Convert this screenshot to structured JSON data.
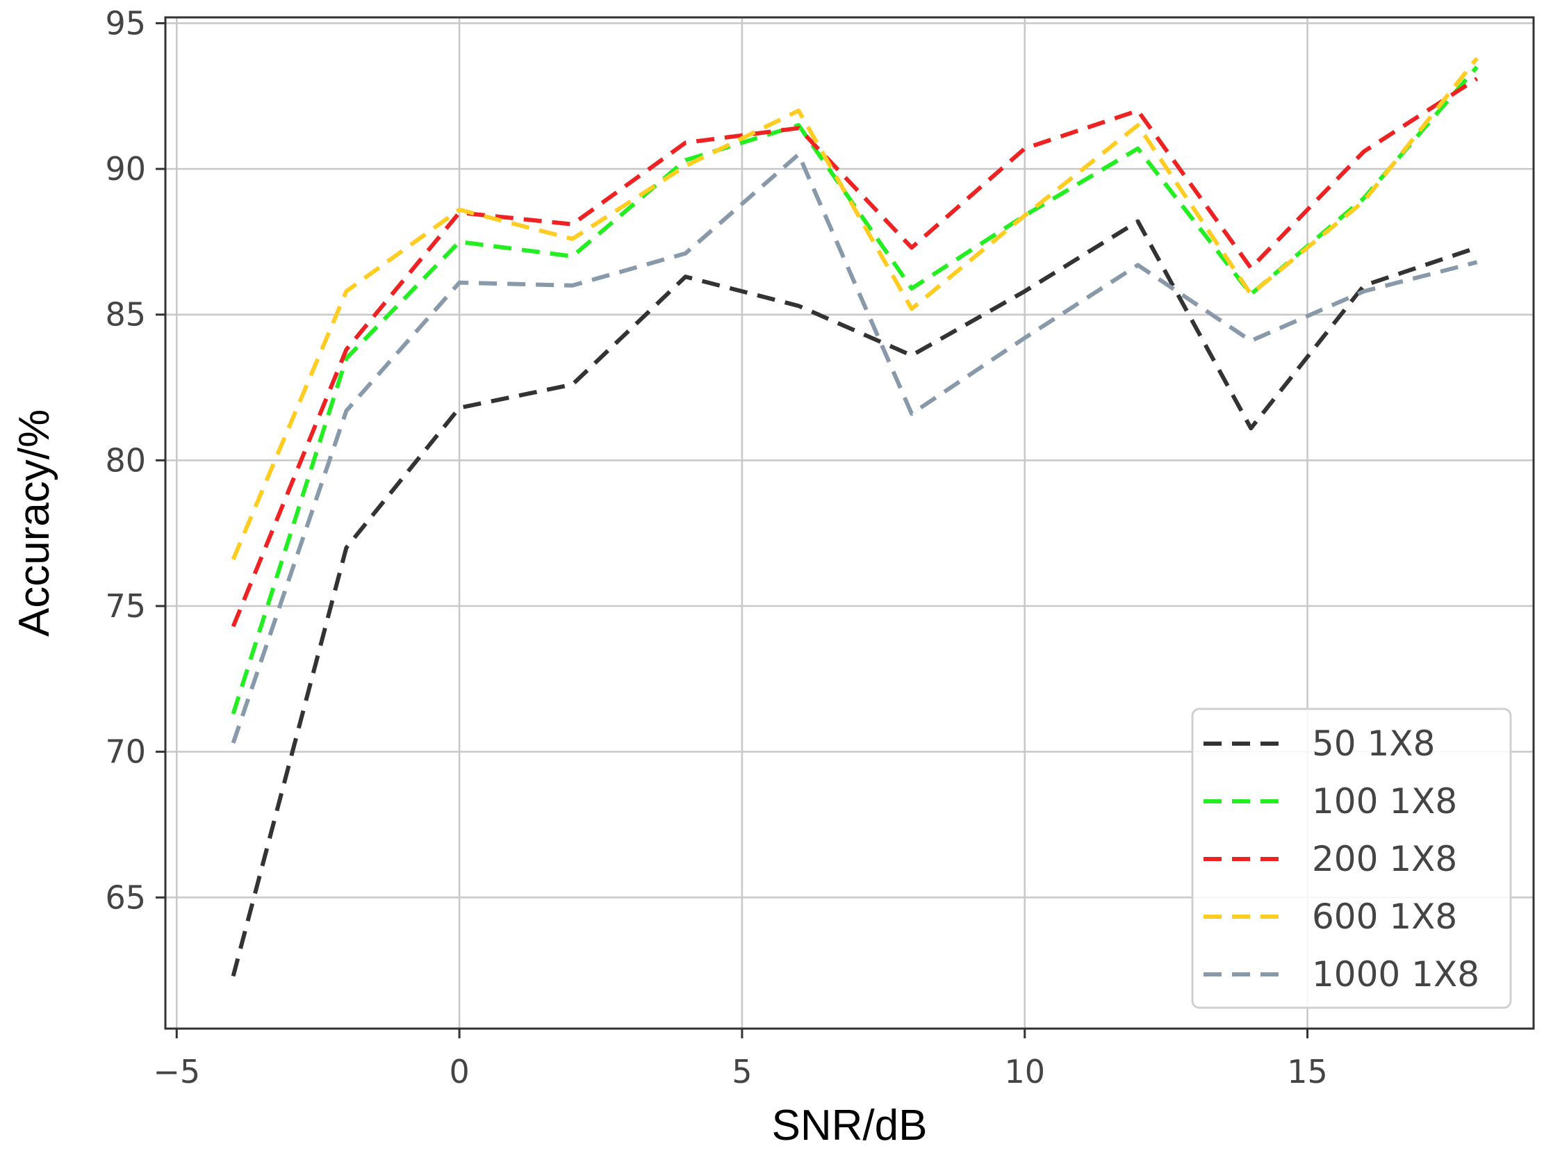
{
  "chart_data": {
    "type": "line",
    "title": "",
    "xlabel": "SNR/dB",
    "ylabel": "Accuracy/%",
    "xlim": [
      -5.2,
      19.0
    ],
    "ylim": [
      60.5,
      95.2
    ],
    "xticks": [
      -5,
      0,
      5,
      10,
      15
    ],
    "xtick_labels": [
      "−5",
      "0",
      "5",
      "10",
      "15"
    ],
    "yticks": [
      65,
      70,
      75,
      80,
      85,
      90,
      95
    ],
    "ytick_labels": [
      "65",
      "70",
      "75",
      "80",
      "85",
      "90",
      "95"
    ],
    "grid": true,
    "line_style": "dashed",
    "legend_position": "lower-right",
    "x": [
      -4,
      -2,
      0,
      2,
      4,
      6,
      8,
      10,
      12,
      14,
      16,
      18
    ],
    "series": [
      {
        "name": "50 1X8",
        "color": "#333333",
        "values": [
          62.3,
          77.0,
          81.8,
          82.6,
          86.3,
          85.3,
          83.6,
          85.8,
          88.2,
          81.1,
          86.0,
          87.3
        ]
      },
      {
        "name": "100 1X8",
        "color": "#22ee22",
        "values": [
          71.3,
          83.5,
          87.5,
          87.0,
          90.3,
          91.5,
          85.9,
          88.4,
          90.7,
          85.7,
          89.0,
          93.5
        ]
      },
      {
        "name": "200 1X8",
        "color": "#ee2222",
        "values": [
          74.3,
          83.8,
          88.5,
          88.1,
          90.9,
          91.4,
          87.3,
          90.7,
          92.0,
          86.6,
          90.6,
          93.1
        ]
      },
      {
        "name": "600 1X8",
        "color": "#ffcc22",
        "values": [
          76.6,
          85.8,
          88.6,
          87.6,
          90.1,
          92.0,
          85.2,
          88.4,
          91.5,
          85.7,
          88.9,
          93.8
        ]
      },
      {
        "name": "1000 1X8",
        "color": "#8899aa",
        "values": [
          70.3,
          81.7,
          86.1,
          86.0,
          87.1,
          90.5,
          81.6,
          84.2,
          86.7,
          84.1,
          85.8,
          86.8
        ]
      }
    ]
  }
}
